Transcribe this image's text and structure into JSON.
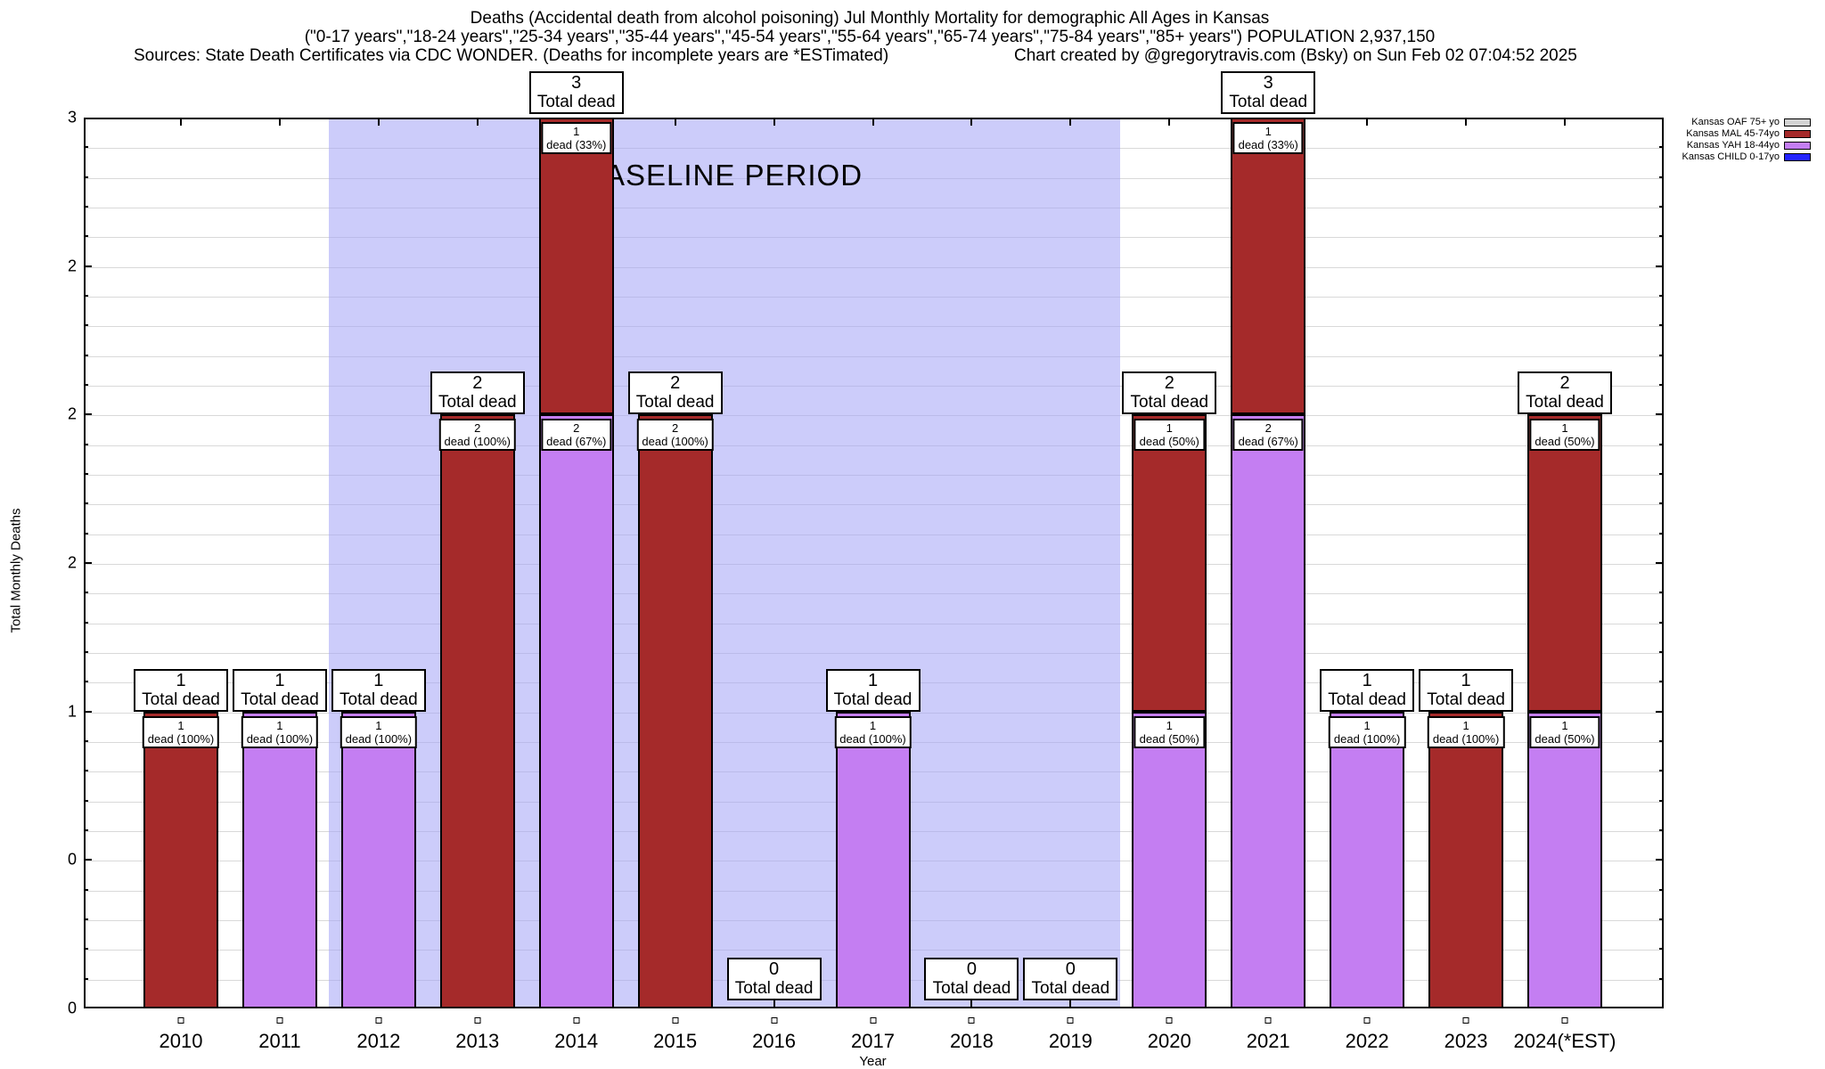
{
  "header": {
    "title_line1": "Deaths (Accidental death from alcohol poisoning) Jul Monthly Mortality for demographic All Ages in Kansas",
    "title_line2": "(\"0-17 years\",\"18-24 years\",\"25-34 years\",\"35-44 years\",\"45-54 years\",\"55-64 years\",\"65-74 years\",\"75-84 years\",\"85+ years\") POPULATION 2,937,150",
    "sources": "Sources: State Death Certificates via CDC WONDER. (Deaths for incomplete years are *ESTimated)",
    "credit": "Chart created by @gregorytravis.com (Bsky) on Sun Feb 02 07:04:52 2025"
  },
  "legend": {
    "items": [
      {
        "label": "Kansas OAF 75+ yo",
        "color": "#d3d3d3"
      },
      {
        "label": "Kansas MAL 45-74yo",
        "color": "#a52a2a"
      },
      {
        "label": "Kansas YAH 18-44yo",
        "color": "#c47ef2"
      },
      {
        "label": "Kansas CHILD 0-17yo",
        "color": "#2222ff"
      }
    ]
  },
  "baseline": {
    "label": "BASELINE PERIOD",
    "from_year_index": 1.5,
    "to_year_index": 9.5
  },
  "y_axis": {
    "label": "Total Monthly Deaths",
    "min": 0,
    "max": 3,
    "tick_step": 0.5,
    "grid_step": 0.1,
    "tick_labels_bottom_to_top": [
      "0",
      "0",
      "1",
      "2",
      "2",
      "2",
      "3"
    ]
  },
  "x_axis": {
    "label": "Year"
  },
  "chart_data": {
    "type": "bar",
    "stacked": true,
    "title": "Deaths (Accidental death from alcohol poisoning) Jul Monthly Mortality for demographic All Ages in Kansas",
    "ylabel": "Total Monthly Deaths",
    "xlabel": "Year",
    "ylim": [
      0,
      3
    ],
    "grid": true,
    "legend_position": "top-right",
    "categories": [
      "2010",
      "2011",
      "2012",
      "2013",
      "2014",
      "2015",
      "2016",
      "2017",
      "2018",
      "2019",
      "2020",
      "2021",
      "2022",
      "2023",
      "2024(*EST)"
    ],
    "series": [
      {
        "name": "Kansas OAF 75+ yo",
        "color": "#d3d3d3",
        "values": [
          0,
          0,
          0,
          0,
          0,
          0,
          0,
          0,
          0,
          0,
          0,
          0,
          0,
          0,
          0
        ]
      },
      {
        "name": "Kansas MAL 45-74yo",
        "color": "#a52a2a",
        "values": [
          1,
          0,
          0,
          2,
          1,
          2,
          0,
          0,
          0,
          0,
          1,
          1,
          0,
          1,
          1
        ]
      },
      {
        "name": "Kansas YAH 18-44yo",
        "color": "#c47ef2",
        "values": [
          0,
          1,
          1,
          0,
          2,
          0,
          0,
          1,
          0,
          0,
          1,
          2,
          1,
          0,
          1
        ]
      },
      {
        "name": "Kansas CHILD 0-17yo",
        "color": "#2222ff",
        "values": [
          0,
          0,
          0,
          0,
          0,
          0,
          0,
          0,
          0,
          0,
          0,
          0,
          0,
          0,
          0
        ]
      }
    ],
    "totals": [
      1,
      1,
      1,
      2,
      3,
      2,
      0,
      1,
      0,
      0,
      2,
      3,
      1,
      1,
      2
    ],
    "total_label": "Total dead",
    "segments_bottom_to_top": [
      [
        {
          "series": "Kansas MAL 45-74yo",
          "value": 1,
          "label_value": "1",
          "label_caption": "dead (100%)"
        }
      ],
      [
        {
          "series": "Kansas YAH 18-44yo",
          "value": 1,
          "label_value": "1",
          "label_caption": "dead (100%)"
        }
      ],
      [
        {
          "series": "Kansas YAH 18-44yo",
          "value": 1,
          "label_value": "1",
          "label_caption": "dead (100%)"
        }
      ],
      [
        {
          "series": "Kansas MAL 45-74yo",
          "value": 2,
          "label_value": "2",
          "label_caption": "dead (100%)"
        }
      ],
      [
        {
          "series": "Kansas YAH 18-44yo",
          "value": 2,
          "label_value": "2",
          "label_caption": "dead (67%)"
        },
        {
          "series": "Kansas MAL 45-74yo",
          "value": 1,
          "label_value": "1",
          "label_caption": "dead (33%)"
        }
      ],
      [
        {
          "series": "Kansas MAL 45-74yo",
          "value": 2,
          "label_value": "2",
          "label_caption": "dead (100%)"
        }
      ],
      [],
      [
        {
          "series": "Kansas YAH 18-44yo",
          "value": 1,
          "label_value": "1",
          "label_caption": "dead (100%)"
        }
      ],
      [],
      [],
      [
        {
          "series": "Kansas YAH 18-44yo",
          "value": 1,
          "label_value": "1",
          "label_caption": "dead (50%)"
        },
        {
          "series": "Kansas MAL 45-74yo",
          "value": 1,
          "label_value": "1",
          "label_caption": "dead (50%)"
        }
      ],
      [
        {
          "series": "Kansas YAH 18-44yo",
          "value": 2,
          "label_value": "2",
          "label_caption": "dead (67%)"
        },
        {
          "series": "Kansas MAL 45-74yo",
          "value": 1,
          "label_value": "1",
          "label_caption": "dead (33%)"
        }
      ],
      [
        {
          "series": "Kansas YAH 18-44yo",
          "value": 1,
          "label_value": "1",
          "label_caption": "dead (100%)"
        }
      ],
      [
        {
          "series": "Kansas MAL 45-74yo",
          "value": 1,
          "label_value": "1",
          "label_caption": "dead (100%)"
        }
      ],
      [
        {
          "series": "Kansas YAH 18-44yo",
          "value": 1,
          "label_value": "1",
          "label_caption": "dead (50%)"
        },
        {
          "series": "Kansas MAL 45-74yo",
          "value": 1,
          "label_value": "1",
          "label_caption": "dead (50%)"
        }
      ]
    ]
  }
}
